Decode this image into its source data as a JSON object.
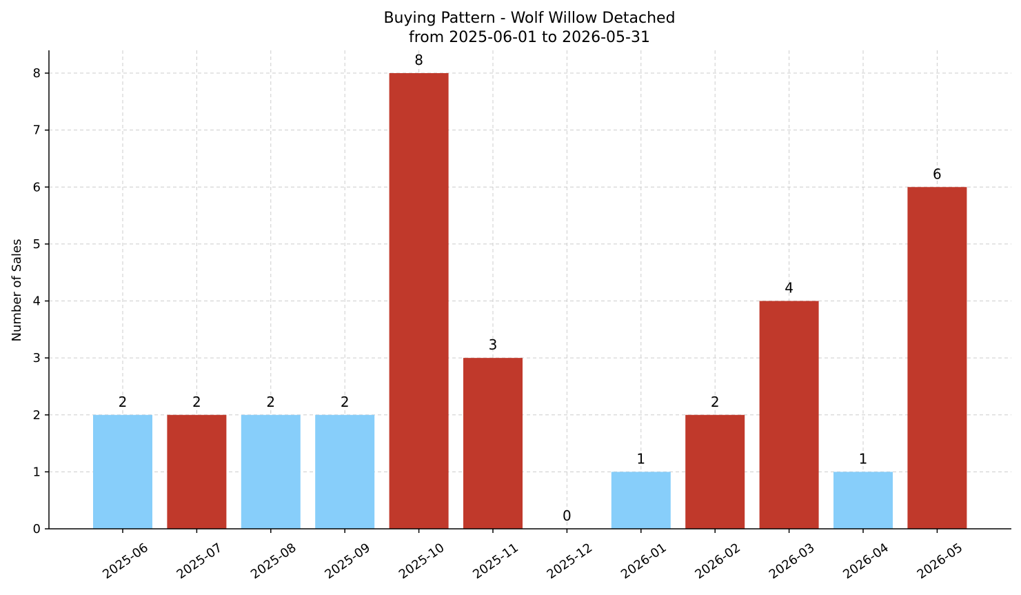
{
  "chart_data": {
    "type": "bar",
    "title_line1": "Buying Pattern - Wolf Willow Detached",
    "title_line2": "from 2025-06-01 to 2026-05-31",
    "xlabel": "",
    "ylabel": "Number of Sales",
    "categories": [
      "2025-06",
      "2025-07",
      "2025-08",
      "2025-09",
      "2025-10",
      "2025-11",
      "2025-12",
      "2026-01",
      "2026-02",
      "2026-03",
      "2026-04",
      "2026-05"
    ],
    "values": [
      2,
      2,
      2,
      2,
      8,
      3,
      0,
      1,
      2,
      4,
      1,
      6
    ],
    "bar_colors": [
      "#87cefa",
      "#c0392b",
      "#87cefa",
      "#87cefa",
      "#c0392b",
      "#c0392b",
      "#c0392b",
      "#87cefa",
      "#c0392b",
      "#c0392b",
      "#87cefa",
      "#c0392b"
    ],
    "ylim": [
      0,
      8.4
    ],
    "yticks": [
      0,
      1,
      2,
      3,
      4,
      5,
      6,
      7,
      8
    ],
    "grid": true,
    "legend": "none"
  }
}
